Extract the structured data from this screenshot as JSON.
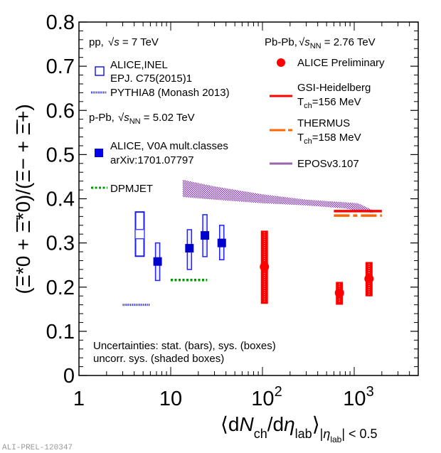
{
  "chart_data": {
    "type": "scatter",
    "title": "",
    "xlabel": "⟨dN_ch/dη_lab⟩_|η_lab| < 0.5",
    "ylabel": "(Ξ*0 + Ξ̄*0)/(Ξ− + Ξ̄+)",
    "x_scale": "log",
    "xlim": [
      1,
      5000
    ],
    "ylim": [
      0,
      0.8
    ],
    "x_ticks": [
      "1",
      "10",
      "10²",
      "10³"
    ],
    "y_ticks": [
      "0",
      "0.1",
      "0.2",
      "0.3",
      "0.4",
      "0.5",
      "0.6",
      "0.7",
      "0.8"
    ],
    "grid": false,
    "colors": {
      "pp": "#1a1aff",
      "pPb": "#0000cc",
      "PbPb": "#ff0000",
      "pythia": "#2222ee",
      "dpmjet": "#009900",
      "gsi": "#ff0000",
      "thermus": "#ff6600",
      "epos": "#8833bb"
    },
    "systems": {
      "pp": "pp, √s = 7 TeV",
      "pPb": "p-Pb, √s_NN = 5.02 TeV",
      "PbPb": "Pb-Pb, √s_NN = 2.76 TeV"
    },
    "series": [
      {
        "name": "ALICE,INEL EPJ. C75(2015)1",
        "system": "pp",
        "marker": "open-square",
        "points": [
          {
            "x": 4.6,
            "y": 0.32,
            "sys_lo": 0.27,
            "sys_hi": 0.37
          }
        ]
      },
      {
        "name": "ALICE, V0A mult.classes arXiv:1701.07797",
        "system": "pPb",
        "marker": "filled-square",
        "points": [
          {
            "x": 7.2,
            "y": 0.258,
            "sys_lo": 0.215,
            "sys_hi": 0.3
          },
          {
            "x": 16.0,
            "y": 0.288,
            "sys_lo": 0.24,
            "sys_hi": 0.33
          },
          {
            "x": 23.6,
            "y": 0.317,
            "sys_lo": 0.269,
            "sys_hi": 0.364
          },
          {
            "x": 36.0,
            "y": 0.3,
            "sys_lo": 0.262,
            "sys_hi": 0.34
          }
        ]
      },
      {
        "name": "ALICE Preliminary",
        "system": "PbPb",
        "marker": "filled-circle",
        "points": [
          {
            "x": 105,
            "y": 0.246,
            "sys_lo": 0.163,
            "sys_hi": 0.327
          },
          {
            "x": 690,
            "y": 0.187,
            "sys_lo": 0.161,
            "sys_hi": 0.211
          },
          {
            "x": 1450,
            "y": 0.219,
            "sys_lo": 0.18,
            "sys_hi": 0.256
          }
        ]
      }
    ],
    "models": [
      {
        "name": "PYTHIA8 (Monash 2013)",
        "style": "dotted",
        "x": [
          3.0,
          6.0
        ],
        "y": 0.16
      },
      {
        "name": "DPMJET",
        "style": "dotted",
        "x": [
          10,
          25
        ],
        "y": 0.216
      },
      {
        "name": "GSI-Heidelberg T_ch=156 MeV",
        "style": "solid",
        "x": [
          600,
          2000
        ],
        "y": 0.372
      },
      {
        "name": "THERMUS T_ch=158 MeV",
        "style": "dashed",
        "x": [
          600,
          2000
        ],
        "y": 0.362
      },
      {
        "name": "EPOSv3.107",
        "style": "band",
        "band": [
          {
            "x": 13.5,
            "lo": 0.404,
            "hi": 0.443
          },
          {
            "x": 30,
            "lo": 0.398,
            "hi": 0.428
          },
          {
            "x": 100,
            "lo": 0.39,
            "hi": 0.41
          },
          {
            "x": 300,
            "lo": 0.385,
            "hi": 0.398
          },
          {
            "x": 800,
            "lo": 0.378,
            "hi": 0.392
          },
          {
            "x": 1100,
            "lo": 0.372,
            "hi": 0.39
          },
          {
            "x": 1600,
            "lo": 0.368,
            "hi": 0.374
          }
        ]
      }
    ],
    "legend": {
      "left": {
        "pp_header": "pp,",
        "pp_energy": "= 7 TeV",
        "pp_data_line1": "ALICE,INEL",
        "pp_data_line2": "EPJ. C75(2015)1",
        "pythia": "PYTHIA8 (Monash 2013)",
        "ppb_header": "p-Pb,",
        "ppb_energy": "= 5.02 TeV",
        "ppb_data_line1": "ALICE, V0A mult.classes",
        "ppb_data_line2": "arXiv:1701.07797",
        "dpmjet": "DPMJET"
      },
      "right": {
        "pbpb_header": "Pb-Pb,",
        "pbpb_energy": "= 2.76 TeV",
        "pbpb_data": "ALICE Preliminary",
        "gsi_line1": "GSI-Heidelberg",
        "gsi_line2_T": "T",
        "gsi_line2_sub": "ch",
        "gsi_line2_val": "=156 MeV",
        "thermus_line1": "THERMUS",
        "thermus_line2_T": "T",
        "thermus_line2_sub": "ch",
        "thermus_line2_val": "=158 MeV",
        "epos": "EPOSv3.107"
      },
      "placement": "top-left and top-right"
    },
    "annotations": {
      "uncert_line1": "Uncertainties: stat. (bars), sys. (boxes)",
      "uncert_line2": "uncorr. sys. (shaded boxes)",
      "watermark": "ALI-PREL-120347"
    }
  }
}
